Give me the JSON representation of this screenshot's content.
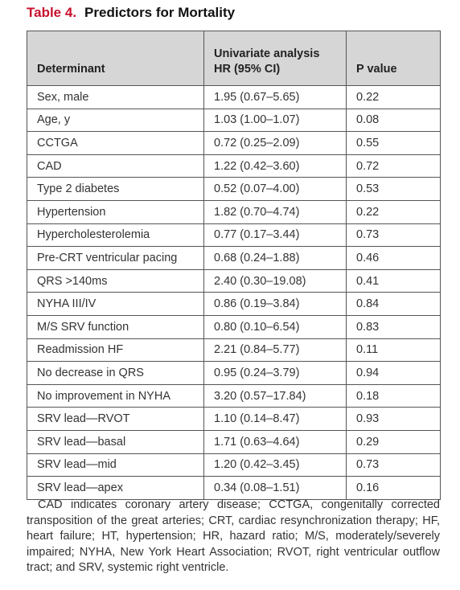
{
  "header": {
    "label": "Table 4.",
    "title": "Predictors for Mortality"
  },
  "table": {
    "columns": {
      "determinant": "Determinant",
      "hr": [
        "Univariate analysis",
        "HR (95% CI)"
      ],
      "p": "P value"
    },
    "rows": [
      [
        "Sex, male",
        "1.95 (0.67–5.65)",
        "0.22"
      ],
      [
        "Age, y",
        "1.03 (1.00–1.07)",
        "0.08"
      ],
      [
        "CCTGA",
        "0.72 (0.25–2.09)",
        "0.55"
      ],
      [
        "CAD",
        "1.22 (0.42–3.60)",
        "0.72"
      ],
      [
        "Type 2 diabetes",
        "0.52 (0.07–4.00)",
        "0.53"
      ],
      [
        "Hypertension",
        "1.82 (0.70–4.74)",
        "0.22"
      ],
      [
        "Hypercholesterolemia",
        "0.77 (0.17–3.44)",
        "0.73"
      ],
      [
        "Pre-CRT ventricular pacing",
        "0.68 (0.24–1.88)",
        "0.46"
      ],
      [
        "QRS >140ms",
        "2.40 (0.30–19.08)",
        "0.41"
      ],
      [
        "NYHA III/IV",
        "0.86 (0.19–3.84)",
        "0.84"
      ],
      [
        "M/S SRV function",
        "0.80 (0.10–6.54)",
        "0.83"
      ],
      [
        "Readmission HF",
        "2.21 (0.84–5.77)",
        "0.11"
      ],
      [
        "No decrease in QRS",
        "0.95 (0.24–3.79)",
        "0.94"
      ],
      [
        "No improvement in NYHA",
        "3.20 (0.57–17.84)",
        "0.18"
      ],
      [
        "SRV lead—RVOT",
        "1.10 (0.14–8.47)",
        "0.93"
      ],
      [
        "SRV lead—basal",
        "1.71 (0.63–4.64)",
        "0.29"
      ],
      [
        "SRV lead—mid",
        "1.20 (0.42–3.45)",
        "0.73"
      ],
      [
        "SRV lead—apex",
        "0.34 (0.08–1.51)",
        "0.16"
      ]
    ]
  },
  "footnote": "CAD indicates coronary artery disease; CCTGA, congenitally corrected transposition of the great arteries; CRT, cardiac resynchronization therapy; HF, heart failure; HT, hypertension; HR, hazard ratio; M/S, moderately/severely impaired; NYHA, New York Heart Association; RVOT, right ventricular outflow tract; and SRV, systemic right ventricle."
}
